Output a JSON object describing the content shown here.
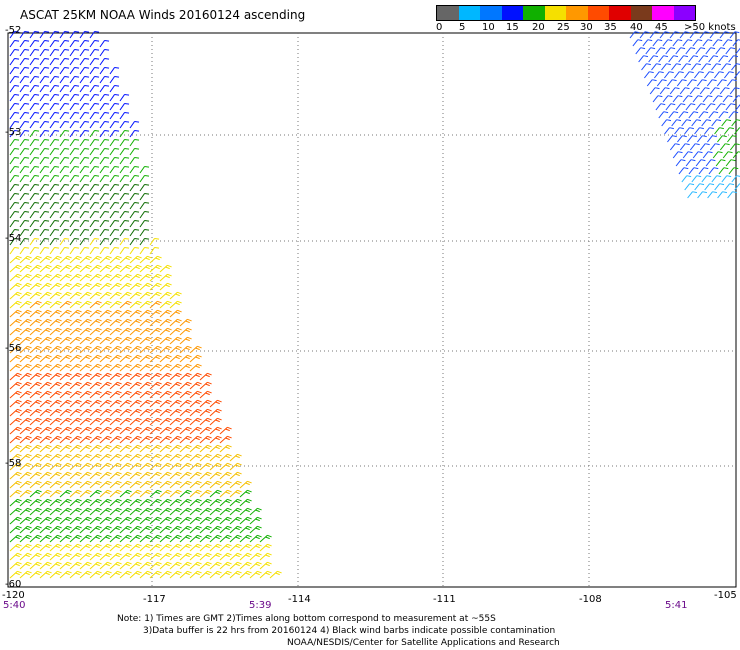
{
  "title": "ASCAT 25KM NOAA Winds 20160124 ascending",
  "scale": {
    "colors": [
      "#666666",
      "#00b7ff",
      "#0077ff",
      "#0011ff",
      "#10b000",
      "#f5e000",
      "#ff9800",
      "#ff4b00",
      "#e00000",
      "#7a3a1c",
      "#ff00ff",
      "#8b00ff"
    ],
    "labels": [
      "0",
      "5",
      "10",
      "15",
      "20",
      "25",
      "30",
      "35",
      "40",
      "45",
      ">50 knots"
    ]
  },
  "map": {
    "lat_labels": [
      "-52",
      "-53",
      "-54",
      "-56",
      "-58",
      "-60"
    ],
    "lon_labels": [
      "-120",
      "-117",
      "-114",
      "-111",
      "-108",
      "-105"
    ],
    "time_labels": [
      "5:40",
      "5:39",
      "5:41"
    ]
  },
  "notes": {
    "line1": "Note: 1) Times are GMT 2)Times along bottom correspond to measurement at ~55S",
    "line2": "3)Data buffer is 22 hrs from 20160124 4) Black wind barbs indicate possible contamination",
    "line3": "NOAA/NESDIS/Center for Satellite Applications and Research"
  }
}
